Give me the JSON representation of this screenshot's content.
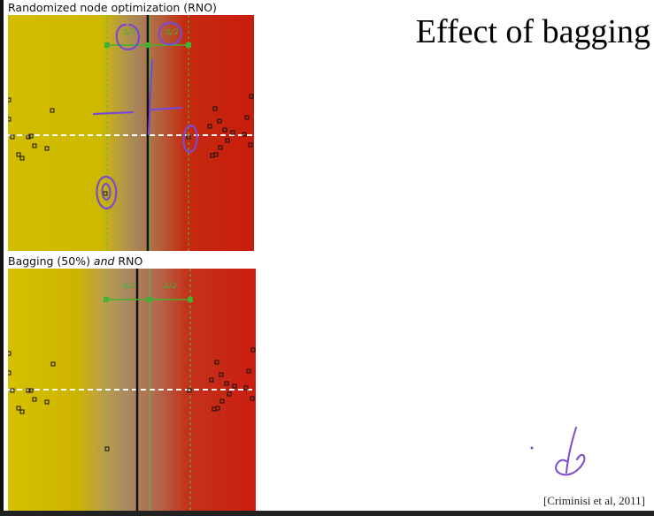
{
  "slide": {
    "title": "Effect of bagging",
    "citation": "[Criminisi et al, 2011]"
  },
  "panels": {
    "top": {
      "caption": "Randomized node optimization (RNO)"
    },
    "bottom": {
      "caption_prefix": "Bagging (50%) ",
      "caption_em": "and",
      "caption_suffix": " RNO"
    }
  },
  "symbols": {
    "delta_over_two": "Δ/2"
  },
  "colors": {
    "class_yellow": "#d3bd00",
    "class_red": "#c91c0c",
    "margin_green": "#44b030",
    "annotation_purple": "#7a4bd0"
  }
}
